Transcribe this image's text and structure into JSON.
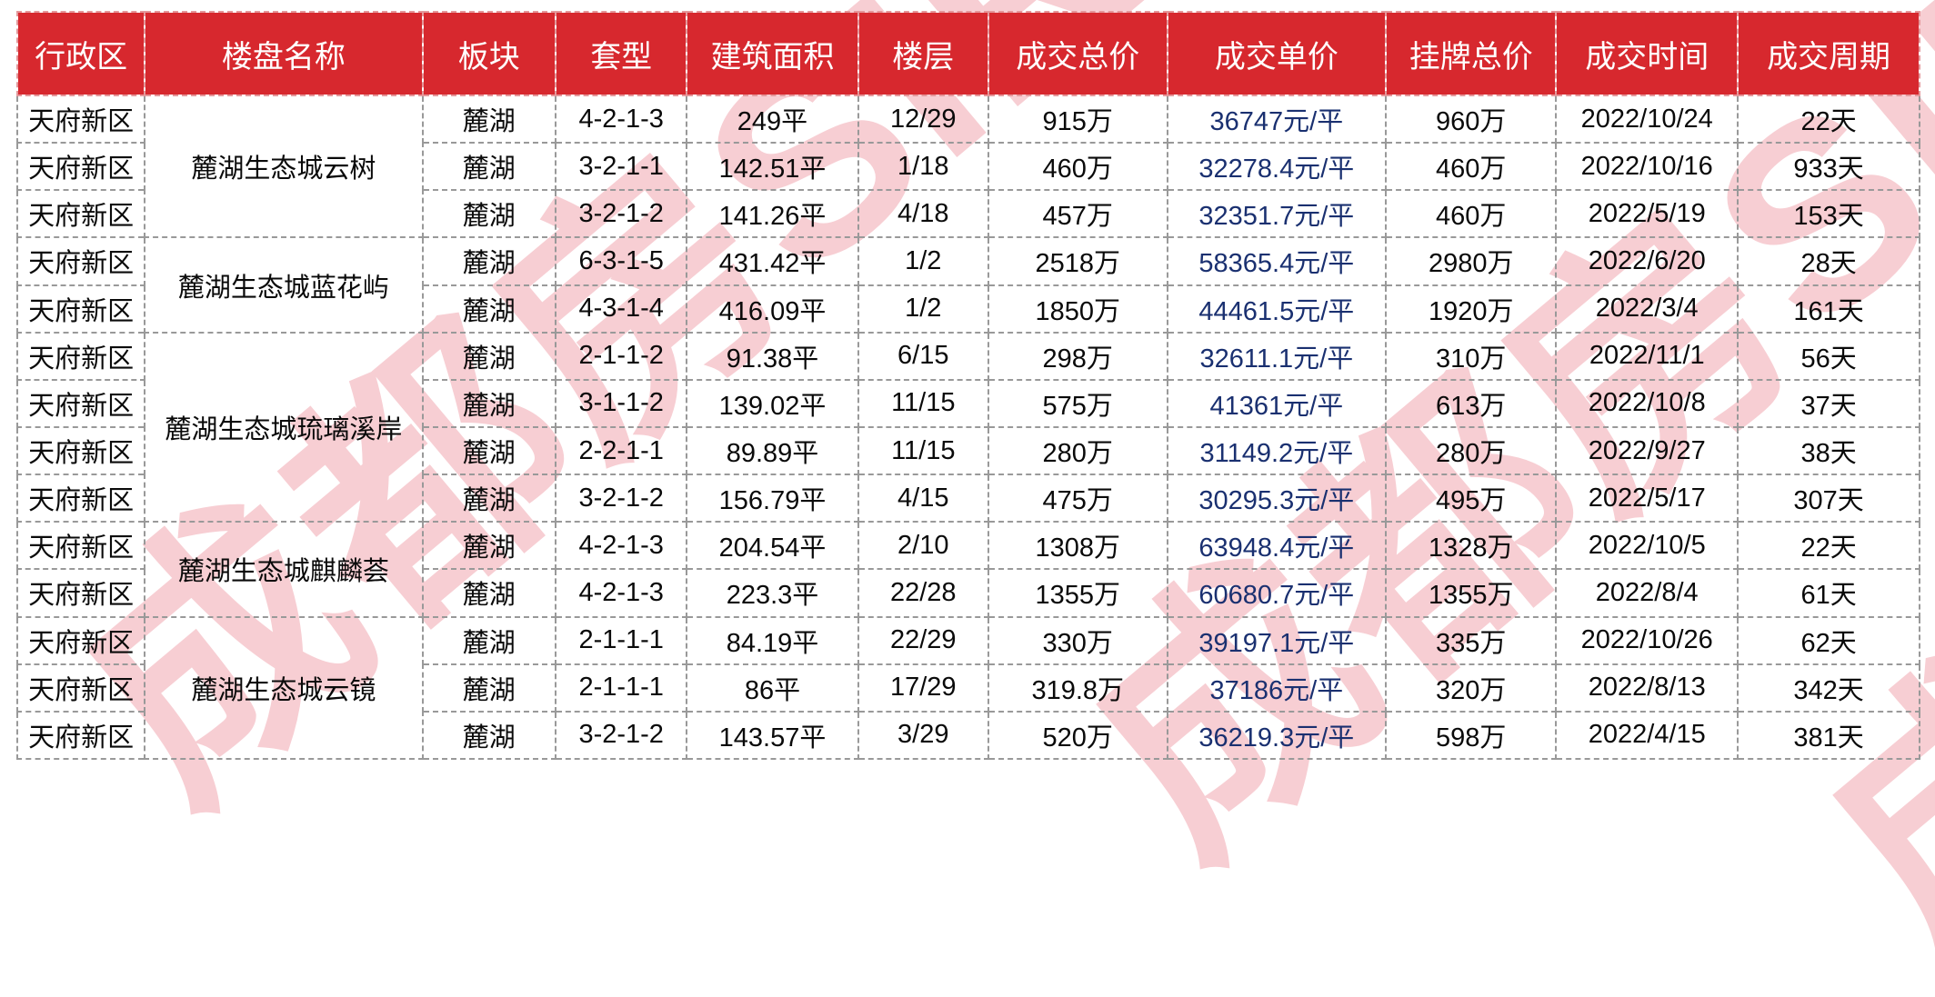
{
  "colors": {
    "header_bg": "#d7282e",
    "header_fg": "#ffffff",
    "unit_price_text": "#1a3070",
    "grid_border": "#999999",
    "watermark_pink": "#f7ced3"
  },
  "watermark": {
    "text": "成都房SIR"
  },
  "table": {
    "headers": [
      "行政区",
      "楼盘名称",
      "板块",
      "套型",
      "建筑面积",
      "楼层",
      "成交总价",
      "成交单价",
      "挂牌总价",
      "成交时间",
      "成交周期"
    ],
    "rows": [
      {
        "district": "天府新区",
        "project": "麓湖生态城云树",
        "project_rowspan": 3,
        "cells": [
          "麓湖",
          "4-2-1-3",
          "249平",
          "12/29",
          "915万",
          "36747元/平",
          "960万",
          "2022/10/24",
          "22天"
        ]
      },
      {
        "district": "天府新区",
        "cells": [
          "麓湖",
          "3-2-1-1",
          "142.51平",
          "1/18",
          "460万",
          "32278.4元/平",
          "460万",
          "2022/10/16",
          "933天"
        ]
      },
      {
        "district": "天府新区",
        "cells": [
          "麓湖",
          "3-2-1-2",
          "141.26平",
          "4/18",
          "457万",
          "32351.7元/平",
          "460万",
          "2022/5/19",
          "153天"
        ]
      },
      {
        "district": "天府新区",
        "project": "麓湖生态城蓝花屿",
        "project_rowspan": 2,
        "cells": [
          "麓湖",
          "6-3-1-5",
          "431.42平",
          "1/2",
          "2518万",
          "58365.4元/平",
          "2980万",
          "2022/6/20",
          "28天"
        ]
      },
      {
        "district": "天府新区",
        "cells": [
          "麓湖",
          "4-3-1-4",
          "416.09平",
          "1/2",
          "1850万",
          "44461.5元/平",
          "1920万",
          "2022/3/4",
          "161天"
        ]
      },
      {
        "district": "天府新区",
        "project": "麓湖生态城琉璃溪岸",
        "project_rowspan": 4,
        "cells": [
          "麓湖",
          "2-1-1-2",
          "91.38平",
          "6/15",
          "298万",
          "32611.1元/平",
          "310万",
          "2022/11/1",
          "56天"
        ]
      },
      {
        "district": "天府新区",
        "cells": [
          "麓湖",
          "3-1-1-2",
          "139.02平",
          "11/15",
          "575万",
          "41361元/平",
          "613万",
          "2022/10/8",
          "37天"
        ]
      },
      {
        "district": "天府新区",
        "cells": [
          "麓湖",
          "2-2-1-1",
          "89.89平",
          "11/15",
          "280万",
          "31149.2元/平",
          "280万",
          "2022/9/27",
          "38天"
        ]
      },
      {
        "district": "天府新区",
        "cells": [
          "麓湖",
          "3-2-1-2",
          "156.79平",
          "4/15",
          "475万",
          "30295.3元/平",
          "495万",
          "2022/5/17",
          "307天"
        ]
      },
      {
        "district": "天府新区",
        "project": "麓湖生态城麒麟荟",
        "project_rowspan": 2,
        "cells": [
          "麓湖",
          "4-2-1-3",
          "204.54平",
          "2/10",
          "1308万",
          "63948.4元/平",
          "1328万",
          "2022/10/5",
          "22天"
        ]
      },
      {
        "district": "天府新区",
        "cells": [
          "麓湖",
          "4-2-1-3",
          "223.3平",
          "22/28",
          "1355万",
          "60680.7元/平",
          "1355万",
          "2022/8/4",
          "61天"
        ]
      },
      {
        "district": "天府新区",
        "project": "麓湖生态城云镜",
        "project_rowspan": 3,
        "cells": [
          "麓湖",
          "2-1-1-1",
          "84.19平",
          "22/29",
          "330万",
          "39197.1元/平",
          "335万",
          "2022/10/26",
          "62天"
        ]
      },
      {
        "district": "天府新区",
        "cells": [
          "麓湖",
          "2-1-1-1",
          "86平",
          "17/29",
          "319.8万",
          "37186元/平",
          "320万",
          "2022/8/13",
          "342天"
        ]
      },
      {
        "district": "天府新区",
        "cells": [
          "麓湖",
          "3-2-1-2",
          "143.57平",
          "3/29",
          "520万",
          "36219.3元/平",
          "598万",
          "2022/4/15",
          "381天"
        ]
      }
    ],
    "cell_names": [
      "cell-section",
      "cell-unit-type",
      "cell-area",
      "cell-floor",
      "cell-total-price",
      "cell-unit-price",
      "cell-listing-price",
      "cell-deal-date",
      "cell-deal-cycle"
    ],
    "col_widths_pct": [
      6.7,
      14.6,
      7.0,
      6.9,
      9.0,
      6.85,
      9.4,
      11.5,
      8.95,
      9.55,
      9.55
    ]
  }
}
